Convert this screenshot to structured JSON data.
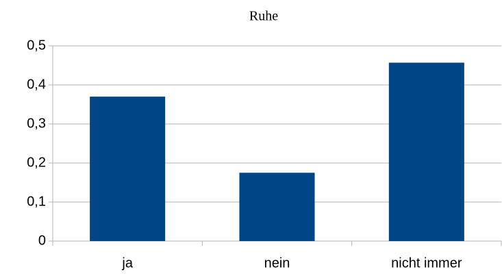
{
  "chart_data": {
    "type": "bar",
    "title": "Ruhe",
    "categories": [
      "ja",
      "nein",
      "nicht immer"
    ],
    "values": [
      0.37,
      0.175,
      0.457
    ],
    "color": "#004586",
    "ylim": [
      0,
      0.5
    ],
    "yticks": [
      0,
      {
        "value": 0.1,
        "label": "0,1"
      },
      {
        "value": 0.2,
        "label": "0,2"
      },
      {
        "value": 0.3,
        "label": "0,3"
      },
      {
        "value": 0.4,
        "label": "0,4"
      },
      {
        "value": 0.5,
        "label": "0,5"
      }
    ],
    "grid": true
  }
}
